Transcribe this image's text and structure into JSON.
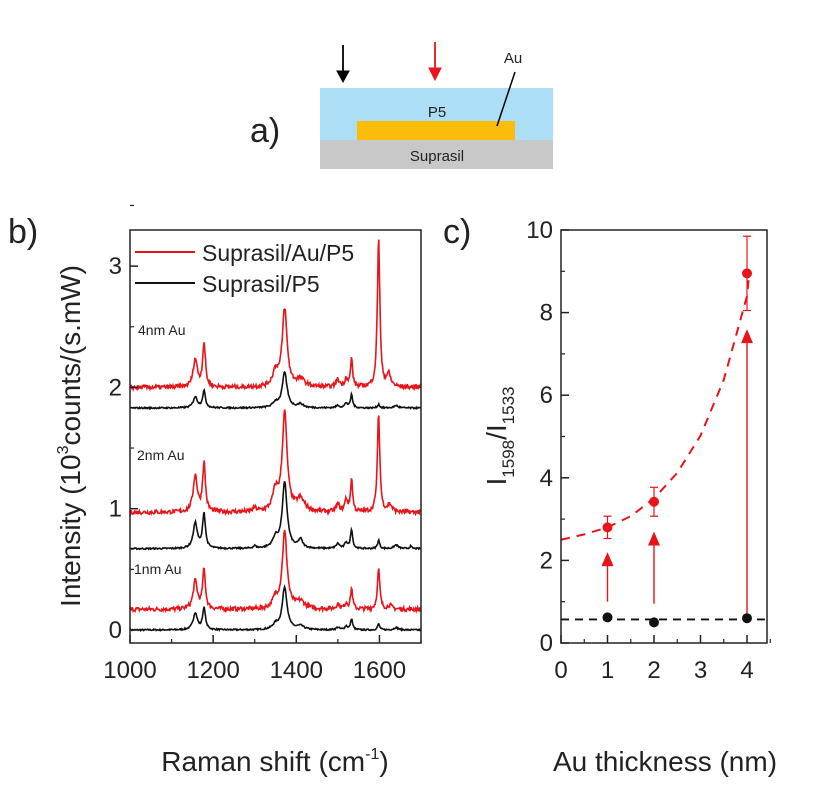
{
  "panel_a": {
    "label": "a)",
    "layers": {
      "top": "P5",
      "metal": "Au",
      "substrate": "Suprasil"
    },
    "colors": {
      "p5": "#acdff5",
      "au": "#fbbd0a",
      "suprasil": "#c8c8c8",
      "arrow_left": "#000000",
      "arrow_right": "#e8141a"
    }
  },
  "chart_data": [
    {
      "panel_label": "b)",
      "type": "line",
      "xlabel_main": "Raman shift (cm",
      "xlabel_sup": "-1",
      "xlabel_end": ")",
      "ylabel_main": "Intensity (10",
      "ylabel_sup": "3",
      "ylabel_end": "counts/(s.mW)",
      "xlim": [
        1000,
        1700
      ],
      "ylim": [
        -0.1,
        3.3
      ],
      "xticks": [
        1000,
        1200,
        1400,
        1600
      ],
      "yticks": [
        0,
        1,
        2,
        3
      ],
      "legend_position": "top-left",
      "legend": [
        {
          "name": "Suprasil/Au/P5",
          "color": "#e8141a"
        },
        {
          "name": "Suprasil/P5",
          "color": "#111111"
        }
      ],
      "annotations": [
        "4nm Au",
        "2nm Au",
        "1nm Au"
      ],
      "series": [
        {
          "group": "1nm Au",
          "sample": "Suprasil/P5",
          "color": "#111111",
          "baseline": 0.0,
          "peaks": [
            [
              1157,
              0.14,
              6
            ],
            [
              1178,
              0.18,
              4
            ],
            [
              1350,
              0.04,
              8
            ],
            [
              1372,
              0.35,
              7
            ],
            [
              1410,
              0.03,
              10
            ],
            [
              1500,
              0.02,
              5
            ],
            [
              1520,
              0.03,
              4
            ],
            [
              1533,
              0.09,
              3
            ],
            [
              1598,
              0.05,
              3
            ],
            [
              1640,
              0.02,
              6
            ]
          ]
        },
        {
          "group": "1nm Au",
          "sample": "Suprasil/Au/P5",
          "color": "#e8141a",
          "baseline": 0.17,
          "peaks": [
            [
              1157,
              0.23,
              6
            ],
            [
              1178,
              0.32,
              4
            ],
            [
              1350,
              0.08,
              8
            ],
            [
              1372,
              0.63,
              7
            ],
            [
              1410,
              0.06,
              12
            ],
            [
              1500,
              0.04,
              5
            ],
            [
              1520,
              0.05,
              4
            ],
            [
              1533,
              0.17,
              3
            ],
            [
              1598,
              0.33,
              3.5
            ],
            [
              1625,
              0.03,
              6
            ]
          ]
        },
        {
          "group": "2nm Au",
          "sample": "Suprasil/P5",
          "color": "#111111",
          "baseline": 0.67,
          "peaks": [
            [
              1157,
              0.21,
              6
            ],
            [
              1178,
              0.29,
              4
            ],
            [
              1300,
              0.02,
              4
            ],
            [
              1350,
              0.08,
              8
            ],
            [
              1372,
              0.54,
              7
            ],
            [
              1410,
              0.07,
              6
            ],
            [
              1500,
              0.04,
              5
            ],
            [
              1520,
              0.05,
              4
            ],
            [
              1533,
              0.16,
              3
            ],
            [
              1598,
              0.07,
              3
            ],
            [
              1640,
              0.03,
              6
            ],
            [
              1675,
              0.02,
              3
            ]
          ]
        },
        {
          "group": "2nm Au",
          "sample": "Suprasil/Au/P5",
          "color": "#e8141a",
          "baseline": 0.97,
          "peaks": [
            [
              1157,
              0.3,
              6
            ],
            [
              1178,
              0.4,
              4
            ],
            [
              1300,
              0.03,
              5
            ],
            [
              1350,
              0.16,
              8
            ],
            [
              1372,
              0.81,
              7
            ],
            [
              1410,
              0.1,
              12
            ],
            [
              1500,
              0.06,
              5
            ],
            [
              1520,
              0.1,
              4
            ],
            [
              1533,
              0.27,
              3
            ],
            [
              1598,
              0.81,
              3.5
            ],
            [
              1625,
              0.06,
              6
            ]
          ]
        },
        {
          "group": "4nm Au",
          "sample": "Suprasil/P5",
          "color": "#111111",
          "baseline": 1.83,
          "peaks": [
            [
              1157,
              0.09,
              6
            ],
            [
              1178,
              0.14,
              4
            ],
            [
              1350,
              0.04,
              8
            ],
            [
              1372,
              0.29,
              7
            ],
            [
              1410,
              0.03,
              8
            ],
            [
              1500,
              0.02,
              5
            ],
            [
              1520,
              0.04,
              4
            ],
            [
              1533,
              0.11,
              3
            ],
            [
              1598,
              0.03,
              3
            ],
            [
              1640,
              0.02,
              6
            ]
          ]
        },
        {
          "group": "4nm Au",
          "sample": "Suprasil/Au/P5",
          "color": "#e8141a",
          "baseline": 2.0,
          "peaks": [
            [
              1157,
              0.23,
              6
            ],
            [
              1178,
              0.36,
              4
            ],
            [
              1350,
              0.12,
              8
            ],
            [
              1372,
              0.64,
              7
            ],
            [
              1410,
              0.06,
              12
            ],
            [
              1500,
              0.06,
              5
            ],
            [
              1520,
              0.07,
              4
            ],
            [
              1533,
              0.23,
              3
            ],
            [
              1598,
              1.24,
              3.5
            ],
            [
              1622,
              0.1,
              6
            ]
          ]
        }
      ]
    },
    {
      "panel_label": "c)",
      "type": "scatter",
      "xlabel": "Au thickness (nm)",
      "ylabel_main": "I",
      "ylabel_sub1": "1598",
      "ylabel_mid": "/I",
      "ylabel_sub2": "1533",
      "xlim": [
        0,
        4.43
      ],
      "ylim": [
        0,
        10
      ],
      "xticks": [
        0,
        1,
        2,
        3,
        4
      ],
      "yticks": [
        0,
        2,
        4,
        6,
        8,
        10
      ],
      "series": [
        {
          "sample": "Suprasil/Au/P5",
          "color": "#e8141a",
          "x": [
            1,
            2,
            4
          ],
          "y": [
            2.8,
            3.42,
            8.95
          ],
          "yerr": [
            0.27,
            0.35,
            0.9
          ]
        },
        {
          "sample": "Suprasil/P5",
          "color": "#111111",
          "x": [
            1,
            2,
            4
          ],
          "y": [
            0.62,
            0.5,
            0.6
          ]
        }
      ],
      "fit_red_dashed": {
        "x": [
          0,
          0.5,
          1,
          1.5,
          2,
          2.5,
          3,
          3.5,
          4,
          4.05
        ],
        "y": [
          2.5,
          2.63,
          2.8,
          3.07,
          3.5,
          4.12,
          5.02,
          6.37,
          8.4,
          8.95
        ]
      },
      "reference_black_dashed": {
        "y": 0.57
      },
      "arrows": [
        {
          "x": 1,
          "from": 1.0,
          "to": 2.2
        },
        {
          "x": 2,
          "from": 0.95,
          "to": 2.7
        },
        {
          "x": 4,
          "from": 0.65,
          "to": 7.6
        }
      ]
    }
  ]
}
